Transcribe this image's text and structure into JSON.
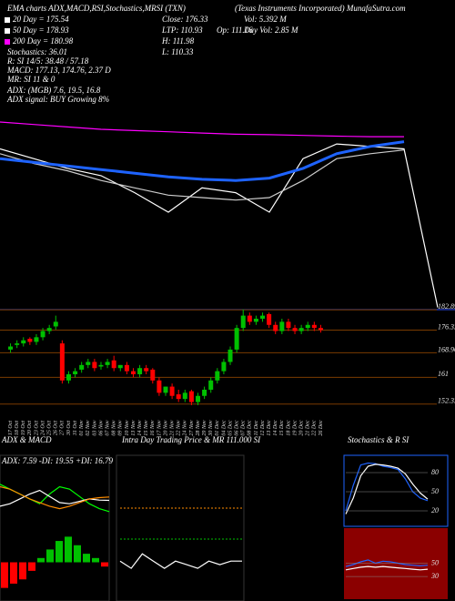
{
  "header": {
    "items": [
      "EMA charts ADX,MACD,RSI,Stochastics,MRSI (TXN)",
      "(Texas Instruments Incorporated) MunafaSutra.com",
      "20 Day = 175.54",
      "Close: 176.33",
      "Vol: 5.392 M",
      "50 Day = 178.93",
      "LTP: 110.93",
      "Op: 111.16",
      "Day Vol: 2.85 M",
      "200 Day = 180.98",
      "H: 111.98",
      "Stochastics: 36.01",
      "L: 110.33",
      "R: SI 14/5: 38.48 / 57.18",
      "MACD: 177.13, 174.76, 2.37 D",
      "MR: SI 11 & 0",
      "ADX: (MGB) 7.6, 19.5, 16.8",
      "ADX signal: BUY Growing 8%"
    ]
  },
  "chart_data": [
    {
      "type": "line",
      "categories": [
        null,
        null,
        null,
        null,
        null,
        null,
        null,
        null,
        null,
        null,
        null,
        null,
        null,
        null
      ],
      "ylim": [
        106.3,
        188.5
      ],
      "series": [
        {
          "name": "Close",
          "color": "#ffffff",
          "values": [
            176,
            172,
            168,
            165,
            158,
            150,
            160,
            158,
            150,
            172,
            178,
            177,
            176,
            110.93
          ]
        },
        {
          "name": "20 Day",
          "color": "#cccccc",
          "values": [
            174,
            170,
            167,
            163,
            160,
            157,
            156,
            155,
            156,
            163,
            172,
            174,
            175.54,
            null
          ]
        },
        {
          "name": "50 Day",
          "color": "#1e63ff",
          "values": [
            172,
            170.5,
            169,
            167.5,
            166,
            164.5,
            163.5,
            163,
            164,
            168,
            174,
            177,
            178.93,
            null
          ]
        },
        {
          "name": "200 Day",
          "color": "#ff00ff",
          "values": [
            187,
            186,
            185,
            184,
            183.5,
            183,
            182.5,
            182,
            181.8,
            181.5,
            181.2,
            181,
            180.98,
            null
          ]
        }
      ]
    },
    {
      "type": "candlestick",
      "up_color": "#00c000",
      "down_color": "#ff0000",
      "ylim": [
        150.5,
        185.9
      ],
      "yticks": [
        182.89,
        176.33,
        168.96,
        161,
        152.33
      ],
      "categories": [
        "17 Oct",
        "18 Oct",
        "19 Oct",
        "20 Oct",
        "23 Oct",
        "24 Oct",
        "25 Oct",
        "26 Oct",
        "27 Oct",
        "30 Oct",
        "31 Oct",
        "01 Nov",
        "02 Nov",
        "03 Nov",
        "06 Nov",
        "07 Nov",
        "08 Nov",
        "09 Nov",
        "10 Nov",
        "13 Nov",
        "14 Nov",
        "15 Nov",
        "16 Nov",
        "17 Nov",
        "20 Nov",
        "21 Nov",
        "22 Nov",
        "24 Nov",
        "27 Nov",
        "28 Nov",
        "29 Nov",
        "30 Nov",
        "01 Dec",
        "04 Dec",
        "05 Dec",
        "06 Dec",
        "07 Dec",
        "08 Dec",
        "11 Dec",
        "12 Dec",
        "13 Dec",
        "14 Dec",
        "15 Dec",
        "18 Dec",
        "19 Dec",
        "20 Dec",
        "21 Dec",
        "22 Dec",
        "26 Dec"
      ],
      "open": [
        170,
        171.5,
        172,
        173.5,
        172.5,
        174,
        176,
        177.5,
        172,
        160,
        162,
        163.5,
        165,
        166,
        164.5,
        165,
        166.5,
        164,
        165,
        163,
        162,
        164,
        163.5,
        160,
        156,
        158,
        155.5,
        154,
        156.5,
        153,
        155,
        157,
        160,
        163,
        166,
        170,
        177,
        181,
        179,
        180,
        181.5,
        178,
        176,
        179,
        177,
        176,
        177,
        178,
        177
      ],
      "high": [
        172,
        173,
        174,
        174,
        175,
        177,
        178,
        181,
        173,
        163,
        164,
        166,
        167,
        167,
        166,
        167,
        168,
        165,
        166,
        164,
        165,
        165,
        164,
        161,
        158,
        159,
        157,
        157,
        157,
        156,
        158,
        161,
        164,
        167,
        171,
        178,
        183,
        182,
        181,
        182,
        182,
        179,
        180,
        180,
        178,
        178,
        179,
        179,
        178
      ],
      "low": [
        169,
        170.5,
        171,
        171.5,
        171.5,
        173,
        175,
        176.5,
        159,
        159,
        161,
        162.5,
        164,
        163,
        163.5,
        164,
        163,
        163,
        162,
        161,
        161,
        162,
        159,
        155,
        155,
        154,
        153,
        153,
        152,
        152,
        154,
        156,
        159,
        162,
        165,
        169,
        176,
        178,
        178,
        179,
        177,
        175,
        175,
        176,
        175,
        175,
        176,
        176,
        175.5
      ],
      "close": [
        171,
        172,
        173,
        172.5,
        174,
        176,
        177,
        179,
        160,
        162,
        163,
        165,
        166,
        164,
        165,
        166,
        164,
        165,
        163,
        162,
        164,
        163,
        160,
        156,
        158,
        155,
        154,
        156,
        153,
        155,
        157,
        160,
        163,
        166,
        170,
        177,
        181,
        179,
        180,
        181,
        178,
        176,
        179,
        177,
        176,
        177,
        178,
        177,
        176.33
      ]
    },
    {
      "type": "line",
      "title": "ADX & MACD",
      "subtitle": "ADX: 7.59 -DI: 19.55 +DI: 16.79",
      "categories": [
        null,
        null,
        null,
        null,
        null,
        null,
        null,
        null,
        null,
        null,
        null,
        null
      ],
      "ylim": [
        0,
        50
      ],
      "series": [
        {
          "name": "ADX",
          "color": "#00ff00",
          "values": [
            30,
            26,
            22,
            18,
            14,
            22,
            28,
            26,
            20,
            14,
            10,
            7.59
          ]
        },
        {
          "name": "+DI",
          "color": "#ffffff",
          "values": [
            12,
            14,
            18,
            22,
            25,
            20,
            15,
            14,
            16,
            18,
            17,
            16.79
          ]
        },
        {
          "name": "-DI",
          "color": "#ff8c00",
          "values": [
            28,
            26,
            22,
            18,
            15,
            12,
            10,
            12,
            15,
            18,
            19,
            19.55
          ]
        }
      ]
    },
    {
      "type": "line",
      "title": "Intra Day Trading Price & MR 111.000 SI",
      "categories": [
        null,
        null,
        null,
        null,
        null,
        null,
        null,
        null,
        null,
        null,
        null,
        null
      ],
      "ylim": [
        110.3,
        112
      ],
      "series": [
        {
          "name": "LTP",
          "color": "#ffffff",
          "values": [
            110.6,
            110.5,
            110.7,
            110.6,
            110.5,
            110.6,
            110.55,
            110.5,
            110.6,
            110.55,
            110.6,
            110.6
          ]
        }
      ]
    },
    {
      "type": "line",
      "title": "Stochastics & R SI",
      "categories": [
        null,
        null,
        null,
        null,
        null,
        null,
        null,
        null,
        null,
        null,
        null,
        null
      ],
      "ylim": [
        0,
        100
      ],
      "yticks": [
        80,
        50,
        20
      ],
      "series": [
        {
          "name": "Stochastics",
          "color": "#1e63ff",
          "values": [
            20,
            60,
            92,
            95,
            94,
            90,
            88,
            85,
            70,
            50,
            40,
            36.01
          ]
        },
        {
          "name": "R",
          "color": "#ffffff",
          "values": [
            15,
            40,
            75,
            90,
            93,
            92,
            90,
            87,
            78,
            62,
            48,
            38.48
          ]
        }
      ]
    },
    {
      "type": "bar",
      "up_color": "#00c000",
      "down_color": "#ff0000",
      "ylim": [
        -4,
        4
      ],
      "values": [
        -3,
        -2.5,
        -2,
        -1,
        0.5,
        1.5,
        2.5,
        3,
        2,
        1,
        0.5,
        -0.5
      ]
    },
    {
      "type": "line",
      "categories": [
        null,
        null,
        null,
        null,
        null,
        null,
        null,
        null,
        null,
        null,
        null,
        null
      ],
      "ylim": [
        0,
        100
      ],
      "yticks": [
        50,
        30
      ],
      "series": [
        {
          "name": "MR",
          "color": "#1e63ff",
          "values": [
            45,
            48,
            52,
            55,
            50,
            53,
            52,
            50,
            48,
            47,
            46,
            47
          ]
        },
        {
          "name": "SI",
          "color": "#ffffff",
          "values": [
            40,
            42,
            44,
            45,
            44,
            45,
            44,
            43,
            42,
            41,
            40,
            41
          ]
        }
      ]
    }
  ]
}
